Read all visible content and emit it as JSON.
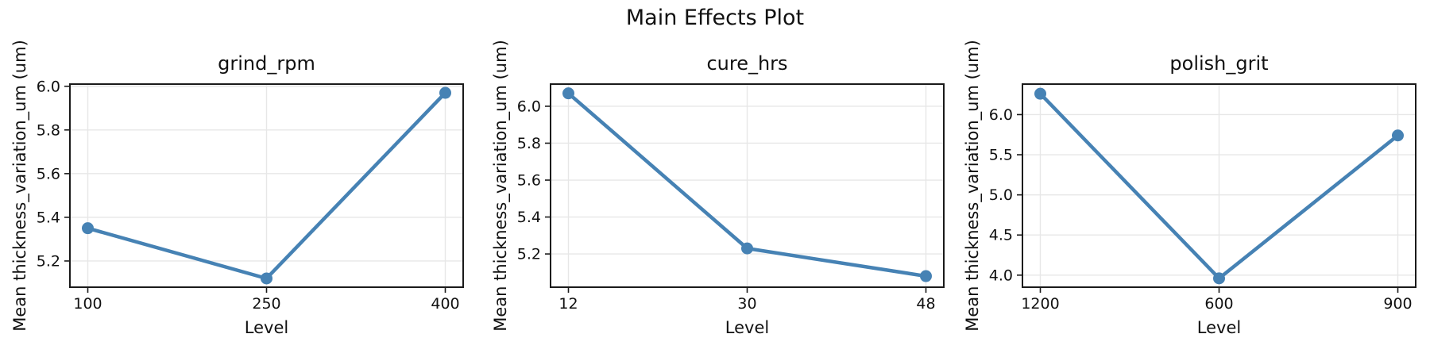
{
  "figure": {
    "suptitle": "Main Effects Plot",
    "background": "#ffffff"
  },
  "colors": {
    "line": "#4682B4",
    "marker": "#4682B4",
    "grid": "#e7e7e7",
    "frame": "#1a1a1a",
    "tick": "#1a1a1a",
    "text": "#111111"
  },
  "chart_data": [
    {
      "type": "line",
      "title": "grind_rpm",
      "xlabel": "Level",
      "ylabel": "Mean thickness_variation_um (um)",
      "categories": [
        "100",
        "250",
        "400"
      ],
      "values": [
        5.35,
        5.12,
        5.97
      ],
      "ylim": [
        5.08,
        6.01
      ],
      "yticks": [
        "5.2",
        "5.4",
        "5.6",
        "5.8",
        "6.0"
      ],
      "grid": true,
      "legend": "none"
    },
    {
      "type": "line",
      "title": "cure_hrs",
      "xlabel": "Level",
      "ylabel": "Mean thickness_variation_um (um)",
      "categories": [
        "12",
        "30",
        "48"
      ],
      "values": [
        6.07,
        5.23,
        5.08
      ],
      "ylim": [
        5.02,
        6.12
      ],
      "yticks": [
        "5.2",
        "5.4",
        "5.6",
        "5.8",
        "6.0"
      ],
      "grid": true,
      "legend": "none"
    },
    {
      "type": "line",
      "title": "polish_grit",
      "xlabel": "Level",
      "ylabel": "Mean thickness_variation_um (um)",
      "categories": [
        "1200",
        "600",
        "900"
      ],
      "values": [
        6.26,
        3.96,
        5.74
      ],
      "ylim": [
        3.85,
        6.38
      ],
      "yticks": [
        "4.0",
        "4.5",
        "5.0",
        "5.5",
        "6.0"
      ],
      "grid": true,
      "legend": "none"
    }
  ]
}
